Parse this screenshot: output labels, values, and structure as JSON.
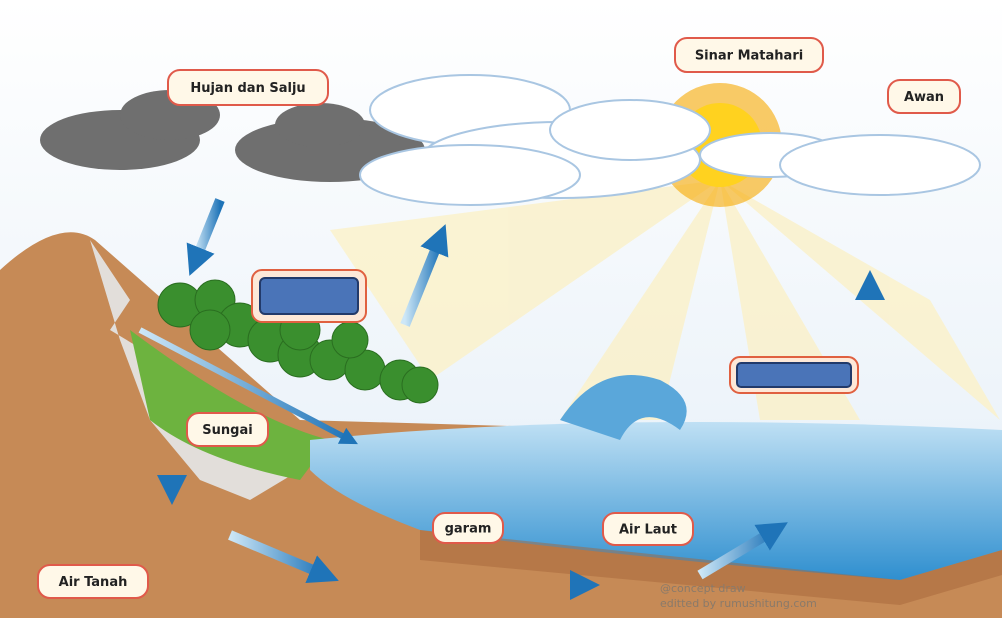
{
  "labels": [
    "Hujan dan Salju",
    "Sinar Matahari",
    "Awan",
    "Sungai",
    "garam",
    "Air Laut",
    "Air Tanah"
  ],
  "watermark": [
    "@concept draw",
    "editted by rumushitung.com"
  ]
}
